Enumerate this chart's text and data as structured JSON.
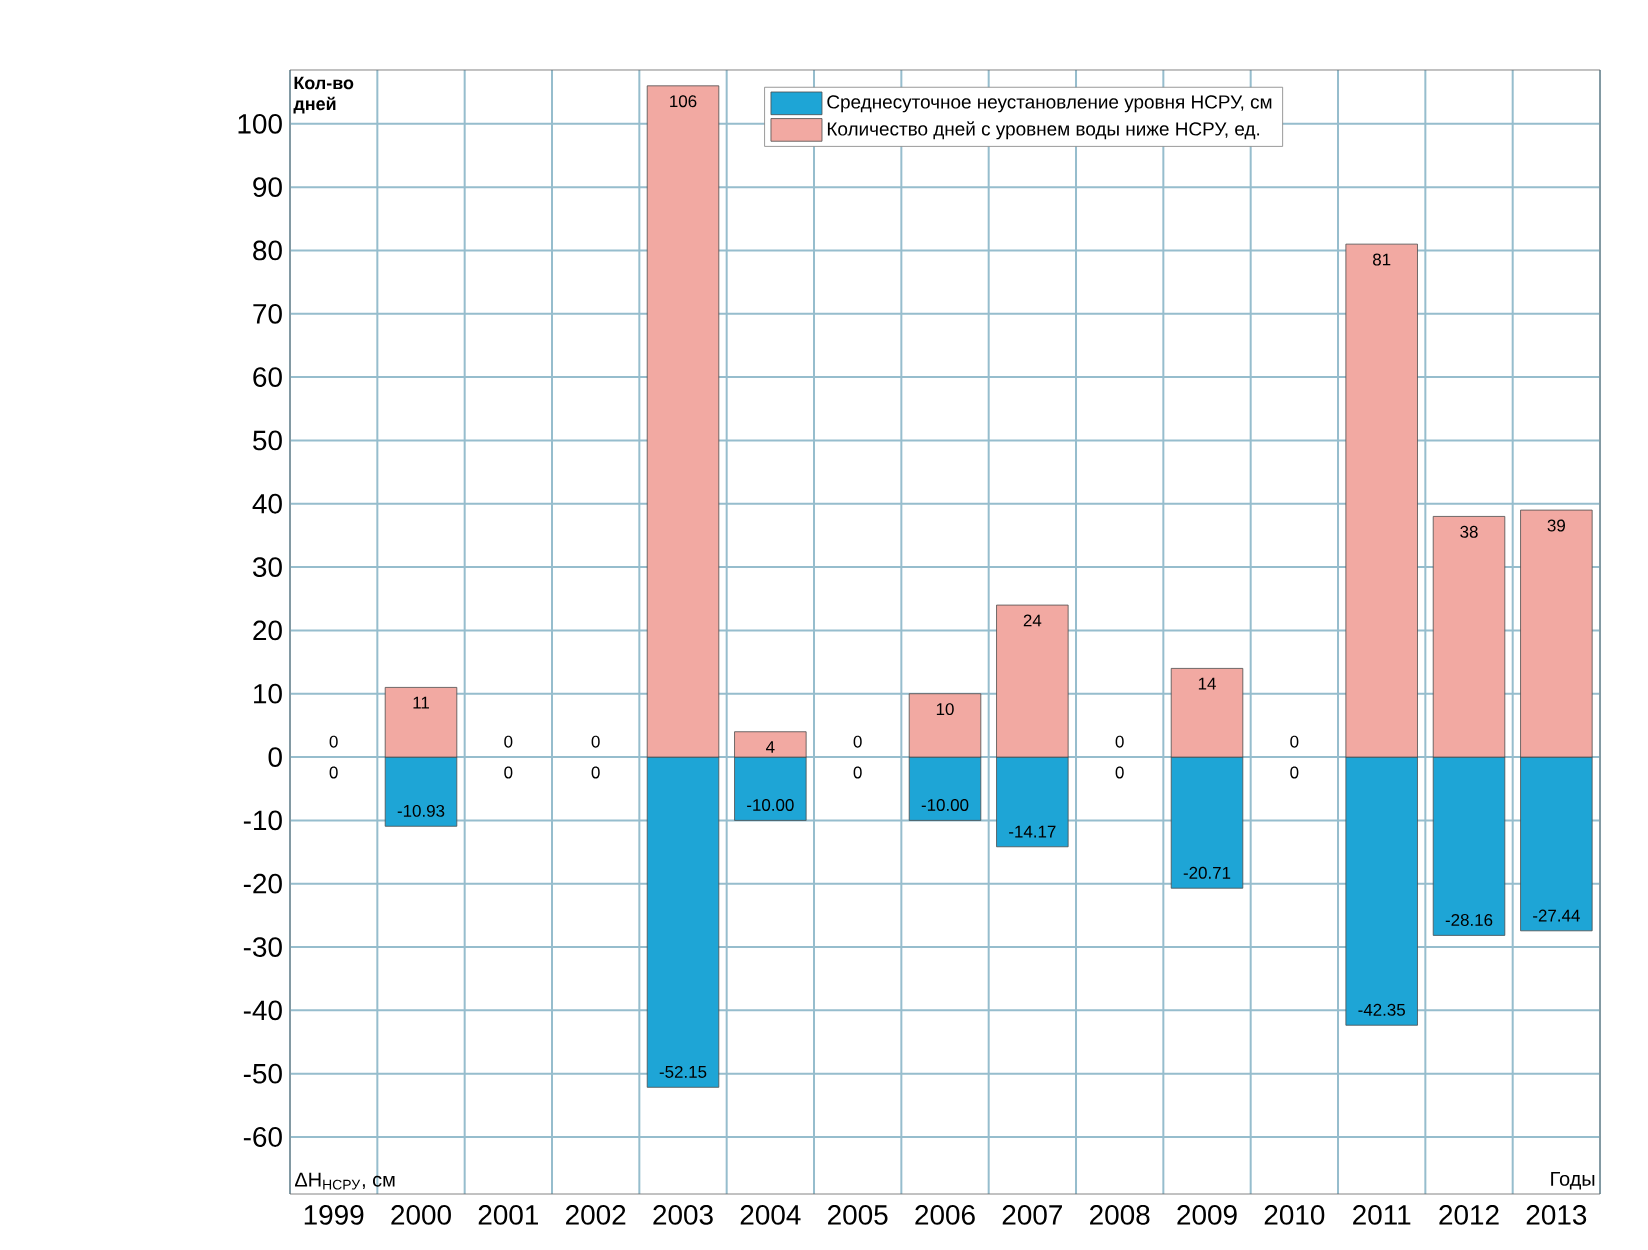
{
  "chart_data": {
    "type": "bar",
    "xlabel": "Годы",
    "ylabel": "Кол-во\nдней",
    "stacked": true,
    "annotations": [
      "ΔH$_{НСРУ}$, см"
    ],
    "categories": [
      "1999",
      "2000",
      "2001",
      "2002",
      "2003",
      "2004",
      "2005",
      "2006",
      "2007",
      "2008",
      "2009",
      "2010",
      "2011",
      "2012",
      "2013"
    ],
    "series": [
      {
        "name": "Среднесуточное неустановление уровня НСРУ, см",
        "color": "#1ea5d6",
        "values": [
          0,
          -10.93,
          0,
          0,
          -52.15,
          -10.0,
          0,
          -10.0,
          -14.17,
          0,
          -20.71,
          0,
          -42.35,
          -28.16,
          -27.44
        ],
        "value_labels": [
          "0",
          "-10.93",
          "0",
          "0",
          "-52.15",
          "-10.00",
          "0",
          "-10.00",
          "-14.17",
          "0",
          "-20.71",
          "0",
          "-42.35",
          "-28.16",
          "-27.44"
        ]
      },
      {
        "name": "Количество дней с уровнем воды ниже НСРУ, ед.",
        "color": "#f2a9a2",
        "values": [
          0,
          11,
          0,
          0,
          106,
          4,
          0,
          10,
          24,
          0,
          14,
          0,
          81,
          38,
          39
        ],
        "value_labels": [
          "0",
          "11",
          "0",
          "0",
          "106",
          "4",
          "0",
          "10",
          "24",
          "0",
          "14",
          "0",
          "81",
          "38",
          "39"
        ]
      }
    ],
    "ylim": [
      -69,
      108.5
    ],
    "yticks": [
      -60,
      -50,
      -40,
      -30,
      -20,
      -10,
      0,
      10,
      20,
      30,
      40,
      50,
      60,
      70,
      80,
      90,
      100
    ],
    "grid": true,
    "legend": "top"
  }
}
